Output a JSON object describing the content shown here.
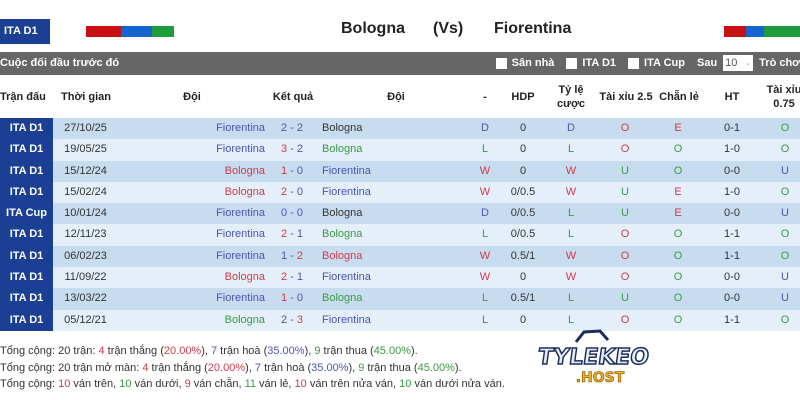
{
  "header": {
    "league": "ITA D1",
    "home": "Bologna",
    "vs": "(Vs)",
    "away": "Fiorentina",
    "left_bar_colors": [
      "#c80f14",
      "#1464d2",
      "#1e9b3c"
    ],
    "right_bar_colors": [
      "#c80f14",
      "#1464d2",
      "#1e9b3c"
    ]
  },
  "section": {
    "title": "Cuộc đối đầu trước đó",
    "filters": [
      {
        "label": "Sân nhà",
        "checked": false
      },
      {
        "label": "ITA D1",
        "checked": false
      },
      {
        "label": "ITA Cup",
        "checked": false
      }
    ],
    "after_label": "Sau",
    "after_value": "10",
    "trailing_label": "Trò chơ"
  },
  "columns": [
    "Trận đấu",
    "Thời gian",
    "Đội",
    "Kết quả",
    "Đội",
    "-",
    "HDP",
    "Tỷ lệ cược",
    "Tài xỉu 2.5",
    "Chẵn lẻ",
    "HT",
    "Tài xỉu 0.75"
  ],
  "colors": {
    "red": "#d23a4a",
    "blue": "#4a55b5",
    "green": "#3b9a45",
    "dark": "#333333",
    "badge": "#1b3f93"
  },
  "rows": [
    {
      "league": "ITA D1",
      "date": "27/10/25",
      "home": "Fiorentina",
      "hc": "b",
      "hs": "2",
      "hsc": "b",
      "as": "2",
      "asc": "b",
      "away": "Bologna",
      "ac": "k",
      "res": "D",
      "resc": "b",
      "hdp": "0",
      "odds": "D",
      "oddsc": "b",
      "ou": "O",
      "ouc": "r",
      "oe": "E",
      "oec": "r",
      "ht": "0-1",
      "ou2": "O",
      "ou2c": "g"
    },
    {
      "league": "ITA D1",
      "date": "19/05/25",
      "home": "Fiorentina",
      "hc": "b",
      "hs": "3",
      "hsc": "r",
      "as": "2",
      "asc": "b",
      "away": "Bologna",
      "ac": "g",
      "res": "L",
      "resc": "g",
      "hdp": "0",
      "odds": "L",
      "oddsc": "g",
      "ou": "O",
      "ouc": "r",
      "oe": "O",
      "oec": "g",
      "ht": "1-0",
      "ou2": "O",
      "ou2c": "g"
    },
    {
      "league": "ITA D1",
      "date": "15/12/24",
      "home": "Bologna",
      "hc": "r",
      "hs": "1",
      "hsc": "r",
      "as": "0",
      "asc": "b",
      "away": "Fiorentina",
      "ac": "b",
      "res": "W",
      "resc": "r",
      "hdp": "0",
      "odds": "W",
      "oddsc": "r",
      "ou": "U",
      "ouc": "g",
      "oe": "O",
      "oec": "g",
      "ht": "0-0",
      "ou2": "U",
      "ou2c": "b"
    },
    {
      "league": "ITA D1",
      "date": "15/02/24",
      "home": "Bologna",
      "hc": "r",
      "hs": "2",
      "hsc": "r",
      "as": "0",
      "asc": "b",
      "away": "Fiorentina",
      "ac": "b",
      "res": "W",
      "resc": "r",
      "hdp": "0/0.5",
      "odds": "W",
      "oddsc": "r",
      "ou": "U",
      "ouc": "g",
      "oe": "E",
      "oec": "r",
      "ht": "1-0",
      "ou2": "O",
      "ou2c": "g"
    },
    {
      "league": "ITA Cup",
      "date": "10/01/24",
      "home": "Fiorentina",
      "hc": "b",
      "hs": "0",
      "hsc": "b",
      "as": "0",
      "asc": "b",
      "away": "Bologna",
      "ac": "k",
      "res": "D",
      "resc": "b",
      "hdp": "0/0.5",
      "odds": "L",
      "oddsc": "g",
      "ou": "U",
      "ouc": "g",
      "oe": "E",
      "oec": "r",
      "ht": "0-0",
      "ou2": "U",
      "ou2c": "b"
    },
    {
      "league": "ITA D1",
      "date": "12/11/23",
      "home": "Fiorentina",
      "hc": "b",
      "hs": "2",
      "hsc": "r",
      "as": "1",
      "asc": "b",
      "away": "Bologna",
      "ac": "g",
      "res": "L",
      "resc": "g",
      "hdp": "0/0.5",
      "odds": "L",
      "oddsc": "g",
      "ou": "O",
      "ouc": "r",
      "oe": "O",
      "oec": "g",
      "ht": "1-1",
      "ou2": "O",
      "ou2c": "g"
    },
    {
      "league": "ITA D1",
      "date": "06/02/23",
      "home": "Fiorentina",
      "hc": "b",
      "hs": "1",
      "hsc": "b",
      "as": "2",
      "asc": "r",
      "away": "Bologna",
      "ac": "r",
      "res": "W",
      "resc": "r",
      "hdp": "0.5/1",
      "odds": "W",
      "oddsc": "r",
      "ou": "O",
      "ouc": "r",
      "oe": "O",
      "oec": "g",
      "ht": "1-1",
      "ou2": "O",
      "ou2c": "g"
    },
    {
      "league": "ITA D1",
      "date": "11/09/22",
      "home": "Bologna",
      "hc": "r",
      "hs": "2",
      "hsc": "r",
      "as": "1",
      "asc": "b",
      "away": "Fiorentina",
      "ac": "b",
      "res": "W",
      "resc": "r",
      "hdp": "0",
      "odds": "W",
      "oddsc": "r",
      "ou": "O",
      "ouc": "r",
      "oe": "O",
      "oec": "g",
      "ht": "0-0",
      "ou2": "U",
      "ou2c": "b"
    },
    {
      "league": "ITA D1",
      "date": "13/03/22",
      "home": "Fiorentina",
      "hc": "b",
      "hs": "1",
      "hsc": "r",
      "as": "0",
      "asc": "b",
      "away": "Bologna",
      "ac": "g",
      "res": "L",
      "resc": "g",
      "hdp": "0.5/1",
      "odds": "L",
      "oddsc": "g",
      "ou": "U",
      "ouc": "g",
      "oe": "O",
      "oec": "g",
      "ht": "0-0",
      "ou2": "U",
      "ou2c": "b"
    },
    {
      "league": "ITA D1",
      "date": "05/12/21",
      "home": "Bologna",
      "hc": "g",
      "hs": "2",
      "hsc": "b",
      "as": "3",
      "asc": "r",
      "away": "Fiorentina",
      "ac": "b",
      "res": "L",
      "resc": "g",
      "hdp": "0",
      "odds": "L",
      "oddsc": "g",
      "ou": "O",
      "ouc": "r",
      "oe": "O",
      "oec": "g",
      "ht": "1-1",
      "ou2": "O",
      "ou2c": "g"
    }
  ],
  "summary": [
    [
      [
        "Tổng cộng: 20 trận: ",
        "k"
      ],
      [
        "4",
        "r"
      ],
      [
        " trận thắng (",
        "k"
      ],
      [
        "20.00%",
        "r"
      ],
      [
        "), ",
        "k"
      ],
      [
        "7",
        "b"
      ],
      [
        " trận hoà (",
        "k"
      ],
      [
        "35.00%",
        "b"
      ],
      [
        "), ",
        "k"
      ],
      [
        "9",
        "g"
      ],
      [
        " trận thua (",
        "k"
      ],
      [
        "45.00%",
        "g"
      ],
      [
        ").",
        "k"
      ]
    ],
    [
      [
        "Tổng cộng: 20 trận mở màn: ",
        "k"
      ],
      [
        "4",
        "r"
      ],
      [
        " trận thắng (",
        "k"
      ],
      [
        "20.00%",
        "r"
      ],
      [
        "), ",
        "k"
      ],
      [
        "7",
        "b"
      ],
      [
        " trận hoà (",
        "k"
      ],
      [
        "35.00%",
        "b"
      ],
      [
        "), ",
        "k"
      ],
      [
        "9",
        "g"
      ],
      [
        " trận thua (",
        "k"
      ],
      [
        "45.00%",
        "g"
      ],
      [
        ").",
        "k"
      ]
    ],
    [
      [
        "Tổng cộng: ",
        "k"
      ],
      [
        "10",
        "r"
      ],
      [
        " ván trên, ",
        "k"
      ],
      [
        "10",
        "g"
      ],
      [
        " ván dưới, ",
        "k"
      ],
      [
        "9",
        "r"
      ],
      [
        " ván chẵn, ",
        "k"
      ],
      [
        "11",
        "g"
      ],
      [
        " ván lẻ, ",
        "k"
      ],
      [
        "10",
        "r"
      ],
      [
        " ván trên nửa ván, ",
        "k"
      ],
      [
        "10",
        "g"
      ],
      [
        " ván dưới nửa ván.",
        "k"
      ]
    ]
  ],
  "watermark": {
    "line1": "TYLEKEO",
    "line2": ".HOST"
  }
}
